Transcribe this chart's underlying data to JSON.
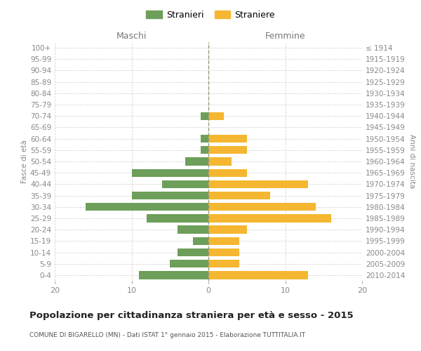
{
  "age_groups": [
    "0-4",
    "5-9",
    "10-14",
    "15-19",
    "20-24",
    "25-29",
    "30-34",
    "35-39",
    "40-44",
    "45-49",
    "50-54",
    "55-59",
    "60-64",
    "65-69",
    "70-74",
    "75-79",
    "80-84",
    "85-89",
    "90-94",
    "95-99",
    "100+"
  ],
  "birth_years": [
    "2010-2014",
    "2005-2009",
    "2000-2004",
    "1995-1999",
    "1990-1994",
    "1985-1989",
    "1980-1984",
    "1975-1979",
    "1970-1974",
    "1965-1969",
    "1960-1964",
    "1955-1959",
    "1950-1954",
    "1945-1949",
    "1940-1944",
    "1935-1939",
    "1930-1934",
    "1925-1929",
    "1920-1924",
    "1915-1919",
    "≤ 1914"
  ],
  "maschi": [
    9,
    5,
    4,
    2,
    4,
    8,
    16,
    10,
    6,
    10,
    3,
    1,
    1,
    0,
    1,
    0,
    0,
    0,
    0,
    0,
    0
  ],
  "femmine": [
    13,
    4,
    4,
    4,
    5,
    16,
    14,
    8,
    13,
    5,
    3,
    5,
    5,
    0,
    2,
    0,
    0,
    0,
    0,
    0,
    0
  ],
  "color_maschi": "#6d9e5a",
  "color_femmine": "#f5b731",
  "title": "Popolazione per cittadinanza straniera per età e sesso - 2015",
  "subtitle": "COMUNE DI BIGARELLO (MN) - Dati ISTAT 1° gennaio 2015 - Elaborazione TUTTITALIA.IT",
  "xlabel_left": "Maschi",
  "xlabel_right": "Femmine",
  "ylabel_left": "Fasce di età",
  "ylabel_right": "Anni di nascita",
  "xlim": 20,
  "legend_stranieri": "Stranieri",
  "legend_straniere": "Straniere",
  "grid_color": "#cccccc"
}
